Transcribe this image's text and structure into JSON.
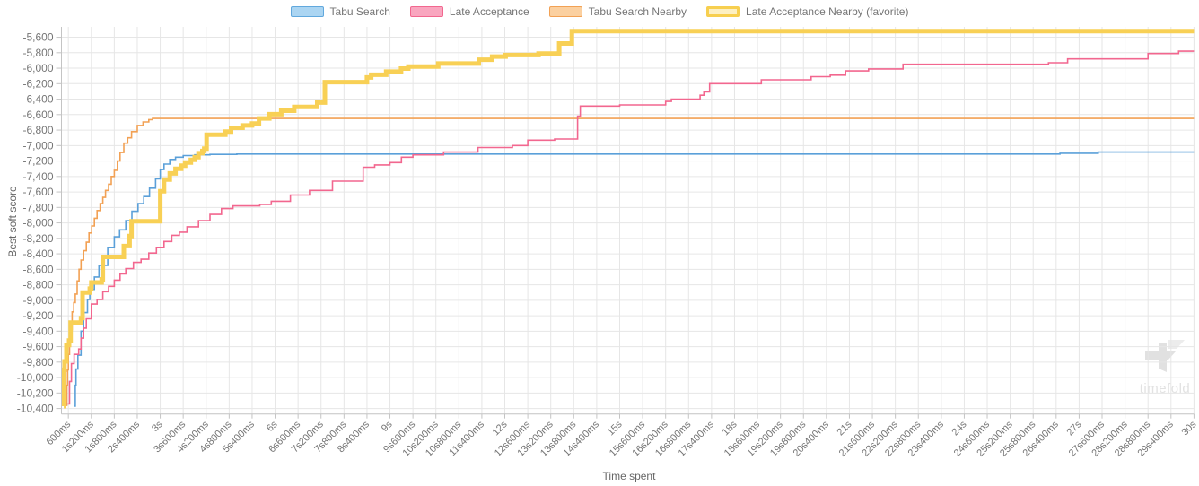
{
  "legend": {
    "items": [
      {
        "label": "Tabu Search",
        "fill": "#abd5f2",
        "border": "#61a8dd",
        "border_width": 1.5
      },
      {
        "label": "Late Acceptance",
        "fill": "#f9a6bf",
        "border": "#f2678f",
        "border_width": 1.5
      },
      {
        "label": "Tabu Search Nearby",
        "fill": "#fbd0a0",
        "border": "#f2a154",
        "border_width": 1.5
      },
      {
        "label": "Late Acceptance Nearby (favorite)",
        "fill": "#fdf0c2",
        "border": "#f7cf4f",
        "border_width": 3
      }
    ]
  },
  "watermark": {
    "text": "timefold"
  },
  "chart_data": {
    "type": "line",
    "title": "",
    "xlabel": "Time spent",
    "ylabel": "Best soft score",
    "grid": true,
    "legend_position": "top",
    "x_domain_ms": [
      420,
      30000
    ],
    "y_domain": [
      -5466,
      -10471
    ],
    "y_range": [
      -10400,
      -5600
    ],
    "y_tick_values": [
      -5600,
      -5800,
      -6000,
      -6200,
      -6400,
      -6600,
      -6800,
      -7000,
      -7200,
      -7400,
      -7600,
      -7800,
      -8000,
      -8200,
      -8400,
      -8600,
      -8800,
      -9000,
      -9200,
      -9400,
      -9600,
      -9800,
      -10000,
      -10200,
      -10400
    ],
    "y_tick_labels": [
      "-5,600",
      "-5,800",
      "-6,000",
      "-6,200",
      "-6,400",
      "-6,600",
      "-6,800",
      "-7,000",
      "-7,200",
      "-7,400",
      "-7,600",
      "-7,800",
      "-8,000",
      "-8,200",
      "-8,400",
      "-8,600",
      "-8,800",
      "-9,000",
      "-9,200",
      "-9,400",
      "-9,600",
      "-9,800",
      "-10,000",
      "-10,200",
      "-10,400"
    ],
    "x_tick_ms": [
      600,
      1200,
      1800,
      2400,
      3000,
      3600,
      4200,
      4800,
      5400,
      6000,
      6600,
      7200,
      7800,
      8400,
      9000,
      9600,
      10200,
      10800,
      11400,
      12000,
      12600,
      13200,
      13800,
      14400,
      15000,
      15600,
      16200,
      16800,
      17400,
      18000,
      18600,
      19200,
      19800,
      20400,
      21000,
      21600,
      22200,
      22800,
      23400,
      24000,
      24600,
      25200,
      25800,
      26400,
      27000,
      27600,
      28200,
      28800,
      29400,
      30000
    ],
    "x_tick_labels": [
      "600ms",
      "1s200ms",
      "1s800ms",
      "2s400ms",
      "3s",
      "3s600ms",
      "4s200ms",
      "4s800ms",
      "5s400ms",
      "6s",
      "6s600ms",
      "7s200ms",
      "7s800ms",
      "8s400ms",
      "9s",
      "9s600ms",
      "10s200ms",
      "10s800ms",
      "11s400ms",
      "12s",
      "12s600ms",
      "13s200ms",
      "13s800ms",
      "14s400ms",
      "15s",
      "15s600ms",
      "16s200ms",
      "16s800ms",
      "17s400ms",
      "18s",
      "18s600ms",
      "19s200ms",
      "19s800ms",
      "20s400ms",
      "21s",
      "21s600ms",
      "22s200ms",
      "22s800ms",
      "23s400ms",
      "24s",
      "24s600ms",
      "25s200ms",
      "25s800ms",
      "26s400ms",
      "27s",
      "27s600ms",
      "28s200ms",
      "28s800ms",
      "29s400ms",
      "30s"
    ],
    "series": [
      {
        "name": "Tabu Search",
        "color": "#5ba0d9",
        "line_width": 1.6,
        "final_score": -7085,
        "points": [
          [
            760,
            -10370
          ],
          [
            780,
            -10100
          ],
          [
            800,
            -9890
          ],
          [
            850,
            -9710
          ],
          [
            930,
            -9400
          ],
          [
            1000,
            -9160
          ],
          [
            1100,
            -8990
          ],
          [
            1160,
            -8860
          ],
          [
            1280,
            -8700
          ],
          [
            1400,
            -8550
          ],
          [
            1630,
            -8320
          ],
          [
            1800,
            -8180
          ],
          [
            1940,
            -8090
          ],
          [
            2100,
            -7970
          ],
          [
            2260,
            -7850
          ],
          [
            2420,
            -7750
          ],
          [
            2570,
            -7660
          ],
          [
            2720,
            -7550
          ],
          [
            2880,
            -7430
          ],
          [
            3000,
            -7310
          ],
          [
            3100,
            -7240
          ],
          [
            3250,
            -7180
          ],
          [
            3400,
            -7150
          ],
          [
            3600,
            -7130
          ],
          [
            3900,
            -7120
          ],
          [
            4300,
            -7115
          ],
          [
            5000,
            -7110
          ],
          [
            26500,
            -7100
          ],
          [
            27500,
            -7085
          ],
          [
            30000,
            -7085
          ]
        ]
      },
      {
        "name": "Tabu Search Nearby",
        "color": "#f2a154",
        "line_width": 1.6,
        "final_score": -6650,
        "points": [
          [
            540,
            -10360
          ],
          [
            560,
            -10100
          ],
          [
            580,
            -9900
          ],
          [
            600,
            -9700
          ],
          [
            630,
            -9520
          ],
          [
            660,
            -9380
          ],
          [
            700,
            -9150
          ],
          [
            740,
            -9030
          ],
          [
            780,
            -8920
          ],
          [
            830,
            -8750
          ],
          [
            880,
            -8600
          ],
          [
            930,
            -8480
          ],
          [
            1000,
            -8360
          ],
          [
            1070,
            -8250
          ],
          [
            1140,
            -8130
          ],
          [
            1210,
            -8040
          ],
          [
            1280,
            -7940
          ],
          [
            1350,
            -7840
          ],
          [
            1430,
            -7750
          ],
          [
            1500,
            -7670
          ],
          [
            1570,
            -7580
          ],
          [
            1650,
            -7500
          ],
          [
            1720,
            -7400
          ],
          [
            1800,
            -7320
          ],
          [
            1880,
            -7200
          ],
          [
            1950,
            -7090
          ],
          [
            2050,
            -6970
          ],
          [
            2150,
            -6900
          ],
          [
            2250,
            -6820
          ],
          [
            2400,
            -6740
          ],
          [
            2550,
            -6695
          ],
          [
            2700,
            -6665
          ],
          [
            2800,
            -6650
          ],
          [
            30000,
            -6650
          ]
        ]
      },
      {
        "name": "Late Acceptance",
        "color": "#f2678f",
        "line_width": 1.6,
        "final_score": -5780,
        "points": [
          [
            580,
            -10340
          ],
          [
            630,
            -10050
          ],
          [
            680,
            -9820
          ],
          [
            750,
            -9700
          ],
          [
            870,
            -9630
          ],
          [
            930,
            -9490
          ],
          [
            1000,
            -9360
          ],
          [
            1070,
            -9240
          ],
          [
            1200,
            -9050
          ],
          [
            1350,
            -8990
          ],
          [
            1500,
            -8890
          ],
          [
            1650,
            -8820
          ],
          [
            1800,
            -8740
          ],
          [
            1950,
            -8660
          ],
          [
            2100,
            -8590
          ],
          [
            2300,
            -8510
          ],
          [
            2500,
            -8470
          ],
          [
            2700,
            -8390
          ],
          [
            2900,
            -8320
          ],
          [
            3100,
            -8240
          ],
          [
            3300,
            -8160
          ],
          [
            3500,
            -8120
          ],
          [
            3700,
            -8050
          ],
          [
            4000,
            -7970
          ],
          [
            4300,
            -7890
          ],
          [
            4600,
            -7815
          ],
          [
            4900,
            -7780
          ],
          [
            5600,
            -7760
          ],
          [
            5900,
            -7720
          ],
          [
            6400,
            -7640
          ],
          [
            6900,
            -7580
          ],
          [
            7500,
            -7460
          ],
          [
            8300,
            -7280
          ],
          [
            8600,
            -7250
          ],
          [
            9000,
            -7220
          ],
          [
            9300,
            -7150
          ],
          [
            9600,
            -7120
          ],
          [
            10400,
            -7085
          ],
          [
            11300,
            -7025
          ],
          [
            12200,
            -7000
          ],
          [
            12600,
            -6930
          ],
          [
            13300,
            -6915
          ],
          [
            13900,
            -6620
          ],
          [
            13970,
            -6490
          ],
          [
            15000,
            -6475
          ],
          [
            16200,
            -6430
          ],
          [
            16350,
            -6400
          ],
          [
            17100,
            -6350
          ],
          [
            17200,
            -6305
          ],
          [
            17350,
            -6200
          ],
          [
            18700,
            -6150
          ],
          [
            20000,
            -6110
          ],
          [
            20500,
            -6090
          ],
          [
            20900,
            -6035
          ],
          [
            21500,
            -6010
          ],
          [
            22400,
            -5950
          ],
          [
            26200,
            -5930
          ],
          [
            26700,
            -5880
          ],
          [
            28800,
            -5810
          ],
          [
            29600,
            -5780
          ],
          [
            30000,
            -5780
          ]
        ]
      },
      {
        "name": "Late Acceptance Nearby (favorite)",
        "color": "#f8d055",
        "line_width": 5,
        "final_score": -5520,
        "points": [
          [
            480,
            -10370
          ],
          [
            490,
            -9900
          ],
          [
            500,
            -9790
          ],
          [
            550,
            -9580
          ],
          [
            620,
            -9520
          ],
          [
            660,
            -9290
          ],
          [
            930,
            -9230
          ],
          [
            970,
            -8900
          ],
          [
            1160,
            -8850
          ],
          [
            1200,
            -8770
          ],
          [
            1470,
            -8730
          ],
          [
            1500,
            -8440
          ],
          [
            2050,
            -8300
          ],
          [
            2200,
            -8170
          ],
          [
            2250,
            -7980
          ],
          [
            3000,
            -7590
          ],
          [
            3100,
            -7440
          ],
          [
            3250,
            -7360
          ],
          [
            3400,
            -7300
          ],
          [
            3550,
            -7260
          ],
          [
            3650,
            -7220
          ],
          [
            3800,
            -7185
          ],
          [
            3900,
            -7150
          ],
          [
            4000,
            -7100
          ],
          [
            4100,
            -7070
          ],
          [
            4150,
            -7040
          ],
          [
            4210,
            -6860
          ],
          [
            4700,
            -6820
          ],
          [
            4850,
            -6770
          ],
          [
            5150,
            -6740
          ],
          [
            5400,
            -6715
          ],
          [
            5580,
            -6650
          ],
          [
            5850,
            -6595
          ],
          [
            6160,
            -6550
          ],
          [
            6500,
            -6500
          ],
          [
            7100,
            -6445
          ],
          [
            7300,
            -6180
          ],
          [
            8400,
            -6120
          ],
          [
            8510,
            -6085
          ],
          [
            8900,
            -6045
          ],
          [
            9290,
            -6005
          ],
          [
            9480,
            -5980
          ],
          [
            10260,
            -5940
          ],
          [
            11320,
            -5890
          ],
          [
            11670,
            -5850
          ],
          [
            12020,
            -5830
          ],
          [
            12880,
            -5810
          ],
          [
            13420,
            -5680
          ],
          [
            13750,
            -5520
          ],
          [
            30000,
            -5520
          ]
        ]
      }
    ]
  }
}
